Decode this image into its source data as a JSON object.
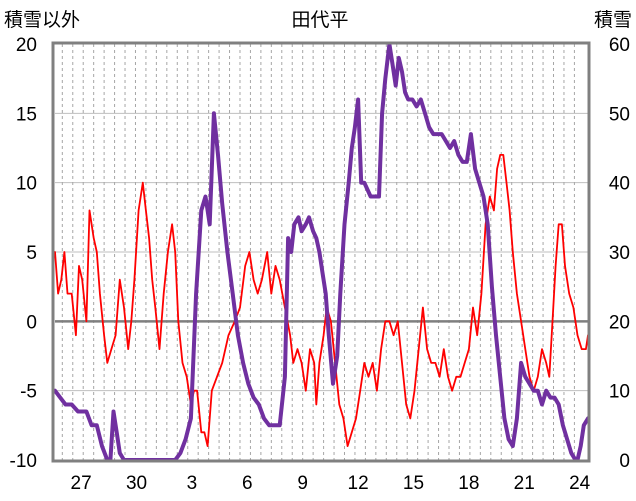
{
  "chart_data": {
    "type": "line",
    "title": "田代平",
    "left_axis_label": "積雪以外",
    "right_axis_label": "積雪",
    "x_tick_labels": [
      "27",
      "30",
      "3",
      "6",
      "9",
      "12",
      "15",
      "18",
      "21",
      "24"
    ],
    "y_left": {
      "range": [
        -10,
        20
      ],
      "ticks": [
        "20",
        "15",
        "10",
        "5",
        "0",
        "-5",
        "-10"
      ]
    },
    "y_right": {
      "range": [
        0,
        60
      ],
      "ticks": [
        "60",
        "50",
        "40",
        "30",
        "20",
        "10",
        "0"
      ]
    },
    "grid": {
      "vertical": "dashed",
      "horizontal": "solid"
    },
    "series": [
      {
        "axis": "left",
        "color": "#ff0000",
        "points": [
          [
            0,
            5
          ],
          [
            0.3,
            2
          ],
          [
            0.6,
            3
          ],
          [
            0.9,
            5
          ],
          [
            1.2,
            2
          ],
          [
            1.6,
            2
          ],
          [
            2,
            -1
          ],
          [
            2.3,
            4
          ],
          [
            2.6,
            3
          ],
          [
            3,
            0
          ],
          [
            3.3,
            8
          ],
          [
            3.7,
            6
          ],
          [
            4,
            5
          ],
          [
            4.3,
            2
          ],
          [
            4.7,
            -1
          ],
          [
            5,
            -3
          ],
          [
            5.4,
            -2
          ],
          [
            5.8,
            -1
          ],
          [
            6.2,
            3
          ],
          [
            6.6,
            1
          ],
          [
            7,
            -2
          ],
          [
            7.3,
            0
          ],
          [
            7.6,
            3
          ],
          [
            8,
            8
          ],
          [
            8.4,
            10
          ],
          [
            8.7,
            8
          ],
          [
            9,
            6
          ],
          [
            9.3,
            3
          ],
          [
            9.6,
            1
          ],
          [
            10,
            -2
          ],
          [
            10.4,
            2
          ],
          [
            10.8,
            5
          ],
          [
            11.2,
            7
          ],
          [
            11.5,
            5
          ],
          [
            11.8,
            0
          ],
          [
            12.2,
            -3
          ],
          [
            12.6,
            -4
          ],
          [
            13,
            -6
          ],
          [
            13.3,
            -5
          ],
          [
            13.6,
            -5
          ],
          [
            14,
            -8
          ],
          [
            14.3,
            -8
          ],
          [
            14.6,
            -9
          ],
          [
            15,
            -5
          ],
          [
            15.5,
            -4
          ],
          [
            16,
            -3
          ],
          [
            16.6,
            -1
          ],
          [
            17.2,
            0
          ],
          [
            17.7,
            1
          ],
          [
            18.2,
            4
          ],
          [
            18.6,
            5
          ],
          [
            19,
            3
          ],
          [
            19.4,
            2
          ],
          [
            19.8,
            3
          ],
          [
            20.3,
            5
          ],
          [
            20.7,
            2
          ],
          [
            21.1,
            4
          ],
          [
            21.5,
            3
          ],
          [
            22,
            1
          ],
          [
            22.5,
            -1
          ],
          [
            22.8,
            -3
          ],
          [
            23.2,
            -2
          ],
          [
            23.6,
            -3
          ],
          [
            24,
            -5
          ],
          [
            24.4,
            -2
          ],
          [
            24.8,
            -3
          ],
          [
            25,
            -6
          ],
          [
            25.3,
            -3
          ],
          [
            25.7,
            -1
          ],
          [
            26,
            1
          ],
          [
            26.4,
            0
          ],
          [
            26.8,
            -3
          ],
          [
            27.2,
            -6
          ],
          [
            27.6,
            -7
          ],
          [
            28,
            -9
          ],
          [
            28.4,
            -8
          ],
          [
            28.8,
            -7
          ],
          [
            29.2,
            -5
          ],
          [
            29.6,
            -3
          ],
          [
            30,
            -4
          ],
          [
            30.4,
            -3
          ],
          [
            30.8,
            -5
          ],
          [
            31.2,
            -2
          ],
          [
            31.6,
            0
          ],
          [
            32,
            0
          ],
          [
            32.4,
            -1
          ],
          [
            32.8,
            0
          ],
          [
            33.2,
            -3
          ],
          [
            33.6,
            -6
          ],
          [
            34,
            -7
          ],
          [
            34.4,
            -5
          ],
          [
            34.8,
            -2
          ],
          [
            35.2,
            1
          ],
          [
            35.6,
            -2
          ],
          [
            36,
            -3
          ],
          [
            36.4,
            -3
          ],
          [
            36.8,
            -4
          ],
          [
            37.2,
            -2
          ],
          [
            37.6,
            -4
          ],
          [
            38,
            -5
          ],
          [
            38.4,
            -4
          ],
          [
            38.8,
            -4
          ],
          [
            39.2,
            -3
          ],
          [
            39.6,
            -2
          ],
          [
            40,
            1
          ],
          [
            40.4,
            -1
          ],
          [
            40.8,
            2
          ],
          [
            41.2,
            7
          ],
          [
            41.6,
            9
          ],
          [
            42,
            8
          ],
          [
            42.3,
            11
          ],
          [
            42.6,
            12
          ],
          [
            42.9,
            12
          ],
          [
            43.2,
            10
          ],
          [
            43.5,
            8
          ],
          [
            43.8,
            5
          ],
          [
            44.2,
            2
          ],
          [
            44.6,
            0
          ],
          [
            45,
            -2
          ],
          [
            45.4,
            -4
          ],
          [
            45.8,
            -5
          ],
          [
            46.2,
            -4
          ],
          [
            46.6,
            -2
          ],
          [
            47,
            -3
          ],
          [
            47.3,
            -4
          ],
          [
            47.6,
            0
          ],
          [
            47.9,
            4
          ],
          [
            48.2,
            7
          ],
          [
            48.5,
            7
          ],
          [
            48.8,
            4
          ],
          [
            49.2,
            2
          ],
          [
            49.6,
            1
          ],
          [
            50,
            -1
          ],
          [
            50.4,
            -2
          ],
          [
            50.8,
            -2
          ],
          [
            51,
            -1
          ]
        ]
      },
      {
        "axis": "right",
        "color": "#7030a0",
        "points": [
          [
            0,
            10
          ],
          [
            0.5,
            9
          ],
          [
            1,
            8
          ],
          [
            1.6,
            8
          ],
          [
            2.2,
            7
          ],
          [
            3,
            7
          ],
          [
            3.5,
            5
          ],
          [
            4,
            5
          ],
          [
            4.5,
            2
          ],
          [
            5,
            0
          ],
          [
            5.3,
            0
          ],
          [
            5.6,
            7
          ],
          [
            5.9,
            4
          ],
          [
            6.2,
            1
          ],
          [
            6.6,
            0
          ],
          [
            7.5,
            0
          ],
          [
            8.5,
            0
          ],
          [
            9.5,
            0
          ],
          [
            10.5,
            0
          ],
          [
            11.5,
            0
          ],
          [
            12,
            1
          ],
          [
            12.5,
            3
          ],
          [
            13,
            6
          ],
          [
            13.5,
            24
          ],
          [
            14,
            36
          ],
          [
            14.4,
            38
          ],
          [
            14.8,
            34
          ],
          [
            15.2,
            50
          ],
          [
            15.6,
            44
          ],
          [
            16,
            37
          ],
          [
            16.5,
            30
          ],
          [
            17,
            24
          ],
          [
            17.5,
            18
          ],
          [
            18,
            14
          ],
          [
            18.5,
            11
          ],
          [
            19,
            9
          ],
          [
            19.5,
            8
          ],
          [
            20,
            6
          ],
          [
            20.5,
            5
          ],
          [
            21,
            5
          ],
          [
            21.5,
            5
          ],
          [
            22,
            12
          ],
          [
            22.3,
            32
          ],
          [
            22.6,
            30
          ],
          [
            22.9,
            34
          ],
          [
            23.3,
            35
          ],
          [
            23.6,
            33
          ],
          [
            24,
            34
          ],
          [
            24.3,
            35
          ],
          [
            24.7,
            33
          ],
          [
            25,
            32
          ],
          [
            25.3,
            30
          ],
          [
            25.6,
            27
          ],
          [
            25.9,
            24
          ],
          [
            26.2,
            18
          ],
          [
            26.6,
            11
          ],
          [
            27,
            15
          ],
          [
            27.3,
            24
          ],
          [
            27.7,
            34
          ],
          [
            28.1,
            40
          ],
          [
            28.4,
            45
          ],
          [
            28.7,
            48
          ],
          [
            29,
            52
          ],
          [
            29.3,
            40
          ],
          [
            29.6,
            40
          ],
          [
            29.9,
            39
          ],
          [
            30.2,
            38
          ],
          [
            30.6,
            38
          ],
          [
            31,
            38
          ],
          [
            31.3,
            50
          ],
          [
            31.6,
            55
          ],
          [
            32,
            60
          ],
          [
            32.3,
            57
          ],
          [
            32.6,
            54
          ],
          [
            32.9,
            58
          ],
          [
            33.2,
            56
          ],
          [
            33.5,
            53
          ],
          [
            33.8,
            52
          ],
          [
            34.2,
            52
          ],
          [
            34.6,
            51
          ],
          [
            35,
            52
          ],
          [
            35.4,
            50
          ],
          [
            35.8,
            48
          ],
          [
            36.2,
            47
          ],
          [
            36.6,
            47
          ],
          [
            37,
            47
          ],
          [
            37.4,
            46
          ],
          [
            37.8,
            45
          ],
          [
            38.2,
            46
          ],
          [
            38.6,
            44
          ],
          [
            39,
            43
          ],
          [
            39.4,
            43
          ],
          [
            39.8,
            47
          ],
          [
            40.2,
            42
          ],
          [
            40.6,
            40
          ],
          [
            41,
            38
          ],
          [
            41.4,
            34
          ],
          [
            41.8,
            25
          ],
          [
            42.2,
            18
          ],
          [
            42.6,
            12
          ],
          [
            43,
            6
          ],
          [
            43.4,
            3
          ],
          [
            43.8,
            2
          ],
          [
            44.2,
            6
          ],
          [
            44.6,
            14
          ],
          [
            45,
            12
          ],
          [
            45.4,
            11
          ],
          [
            45.8,
            10
          ],
          [
            46.2,
            10
          ],
          [
            46.6,
            8
          ],
          [
            47,
            10
          ],
          [
            47.4,
            9
          ],
          [
            47.8,
            9
          ],
          [
            48.2,
            8
          ],
          [
            48.6,
            5
          ],
          [
            49,
            3
          ],
          [
            49.4,
            1
          ],
          [
            49.8,
            0
          ],
          [
            50,
            0
          ],
          [
            50.3,
            2
          ],
          [
            50.6,
            5
          ],
          [
            51,
            6
          ]
        ]
      }
    ]
  }
}
